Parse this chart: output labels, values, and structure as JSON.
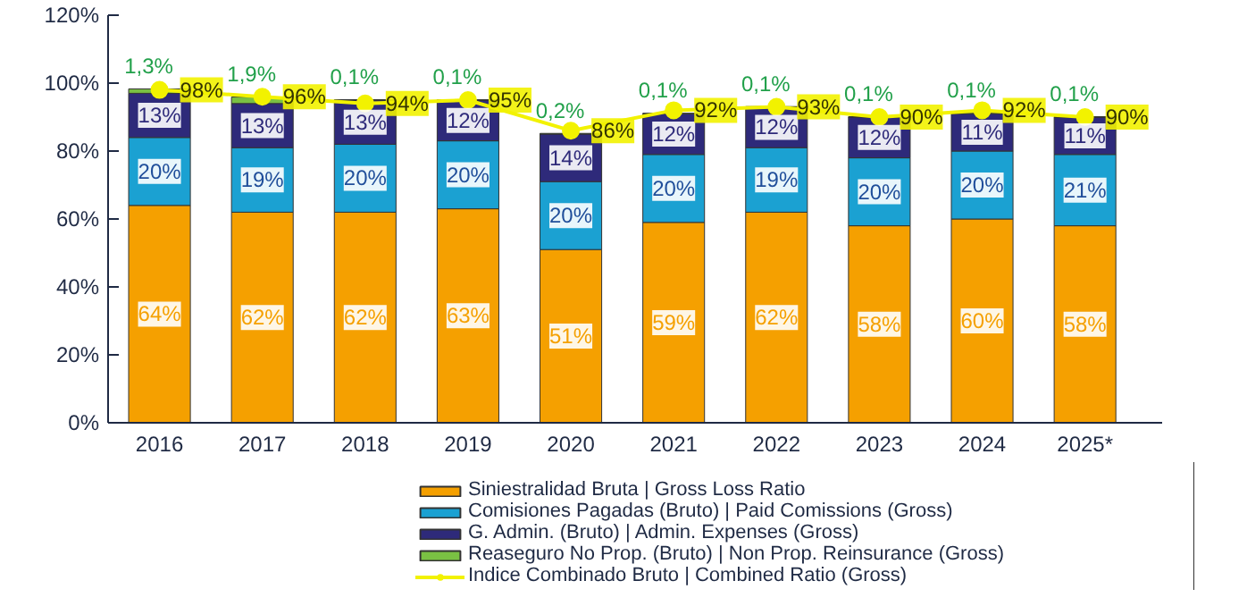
{
  "chart_data": {
    "type": "bar",
    "stacked": true,
    "categories": [
      "2016",
      "2017",
      "2018",
      "2019",
      "2020",
      "2021",
      "2022",
      "2023",
      "2024",
      "2025*"
    ],
    "ylim": [
      0,
      120
    ],
    "yticks": [
      {
        "value": 0,
        "label": "0%"
      },
      {
        "value": 20,
        "label": "20%"
      },
      {
        "value": 40,
        "label": "40%"
      },
      {
        "value": 60,
        "label": "60%"
      },
      {
        "value": 80,
        "label": "80%"
      },
      {
        "value": 100,
        "label": "100%"
      },
      {
        "value": 120,
        "label": "120%"
      }
    ],
    "grid": false,
    "legend": "bottom",
    "series": [
      {
        "name": "Siniestralidad Bruta | Gross Loss Ratio",
        "color": "#f5a000",
        "values": [
          64,
          62,
          62,
          63,
          51,
          59,
          62,
          58,
          60,
          58
        ],
        "value_labels": [
          "64%",
          "62%",
          "62%",
          "63%",
          "51%",
          "59%",
          "62%",
          "58%",
          "60%",
          "58%"
        ]
      },
      {
        "name": "Comisiones Pagadas (Bruto) | Paid Comissions (Gross)",
        "color": "#1ba1d2",
        "values": [
          20,
          19,
          20,
          20,
          20,
          20,
          19,
          20,
          20,
          21
        ],
        "value_labels": [
          "20%",
          "19%",
          "20%",
          "20%",
          "20%",
          "20%",
          "19%",
          "20%",
          "20%",
          "21%"
        ]
      },
      {
        "name": "G. Admin. (Bruto) | Admin. Expenses (Gross)",
        "color": "#2e2a7a",
        "values": [
          13,
          13,
          13,
          12,
          14,
          12,
          12,
          12,
          11,
          11
        ],
        "value_labels": [
          "13%",
          "13%",
          "13%",
          "12%",
          "14%",
          "12%",
          "12%",
          "12%",
          "11%",
          "11%"
        ]
      },
      {
        "name": "Reaseguro No Prop. (Bruto) | Non Prop. Reinsurance (Gross)",
        "color": "#7ac143",
        "values": [
          1.3,
          1.9,
          0.1,
          0.1,
          0.2,
          0.1,
          0.1,
          0.1,
          0.1,
          0.1
        ],
        "value_labels": [
          "1,3%",
          "1,9%",
          "0,1%",
          "0,1%",
          "0,2%",
          "0,1%",
          "0,1%",
          "0,1%",
          "0,1%",
          "0,1%"
        ]
      },
      {
        "name": "Indice Combinado Bruto | Combined Ratio (Gross)",
        "type": "line",
        "marker": "circle",
        "color": "#f2f200",
        "values": [
          98,
          96,
          94,
          95,
          86,
          92,
          93,
          90,
          92,
          90
        ],
        "value_labels": [
          "98%",
          "96%",
          "94%",
          "95%",
          "86%",
          "92%",
          "93%",
          "90%",
          "92%",
          "90%"
        ]
      }
    ]
  }
}
